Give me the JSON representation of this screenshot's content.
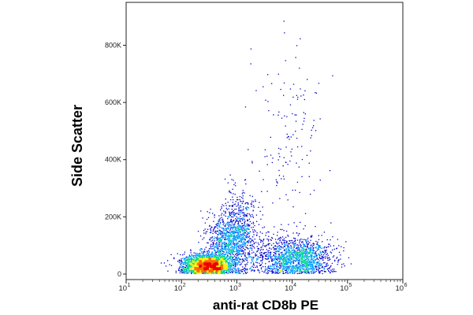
{
  "chart_data": {
    "type": "scatter",
    "plot_style": "flow cytometry density dot plot (pseudocolor)",
    "xlabel": "anti-rat CD8b PE",
    "ylabel": "Side Scatter",
    "x_scale": "log",
    "xlim": [
      10,
      1000000
    ],
    "ylim": [
      0,
      950000
    ],
    "x_ticks": [
      {
        "value": 10,
        "base": "10",
        "exp": "1"
      },
      {
        "value": 100,
        "base": "10",
        "exp": "2"
      },
      {
        "value": 1000,
        "base": "10",
        "exp": "3"
      },
      {
        "value": 10000,
        "base": "10",
        "exp": "4"
      },
      {
        "value": 100000,
        "base": "10",
        "exp": "5"
      },
      {
        "value": 1000000,
        "base": "10",
        "exp": "6"
      }
    ],
    "y_ticks": [
      {
        "value": 0,
        "label": "0"
      },
      {
        "value": 200000,
        "label": "200K"
      },
      {
        "value": 400000,
        "label": "400K"
      },
      {
        "value": 600000,
        "label": "600K"
      },
      {
        "value": 800000,
        "label": "800K"
      }
    ],
    "grid": false,
    "legend": "none",
    "density_colors": [
      "#0000cc",
      "#00a0ff",
      "#00dd88",
      "#ffee00",
      "#ff6600",
      "#ee0000"
    ],
    "populations": [
      {
        "x_center": 300,
        "y_center": 40000,
        "description": "main dense population (red core)"
      },
      {
        "x_center": 800,
        "y_center": 150000,
        "description": "upward-extending tail"
      },
      {
        "x_center": 15000,
        "y_center": 60000,
        "description": "CD8b-positive population"
      },
      {
        "x_center": 8000,
        "y_center": 550000,
        "description": "sparse high side-scatter events"
      }
    ]
  }
}
